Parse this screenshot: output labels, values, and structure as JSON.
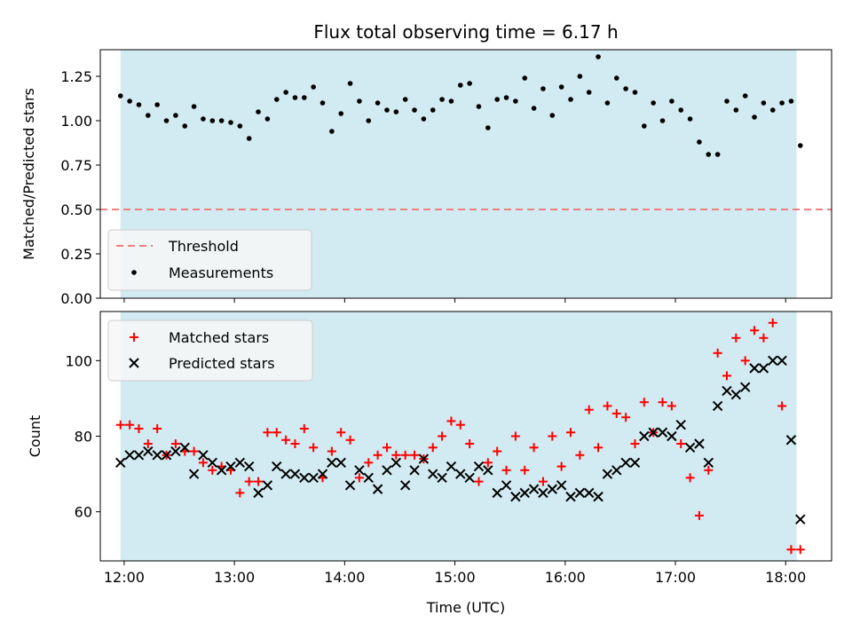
{
  "title": "Flux total observing time = 6.17 h",
  "colors": {
    "shade": "#add8e6",
    "threshold": "#f08080",
    "measurements": "#000000",
    "matched": "#ff0000",
    "predicted": "#000000",
    "legend_bg": "#f7f7f7"
  },
  "chart_data": [
    {
      "type": "scatter",
      "ylabel": "Matched/Predicted stars",
      "xlabel": "",
      "ylim": [
        0.0,
        1.4
      ],
      "xlim": [
        "11:47",
        "18:25"
      ],
      "yticks": [
        "0.00",
        "0.25",
        "0.50",
        "0.75",
        "1.00",
        "1.25"
      ],
      "shaded_span": [
        "11:58",
        "18:06"
      ],
      "threshold": 0.5,
      "legend": {
        "placement": "lower-left",
        "entries": [
          "Threshold",
          "Measurements"
        ]
      },
      "series": [
        {
          "name": "Measurements",
          "x": [
            "11:58",
            "12:03",
            "12:08",
            "12:13",
            "12:18",
            "12:23",
            "12:28",
            "12:33",
            "12:38",
            "12:43",
            "12:48",
            "12:53",
            "12:58",
            "13:03",
            "13:08",
            "13:13",
            "13:18",
            "13:23",
            "13:28",
            "13:33",
            "13:38",
            "13:43",
            "13:48",
            "13:53",
            "13:58",
            "14:03",
            "14:08",
            "14:13",
            "14:18",
            "14:23",
            "14:28",
            "14:33",
            "14:38",
            "14:43",
            "14:48",
            "14:53",
            "14:58",
            "15:03",
            "15:08",
            "15:13",
            "15:18",
            "15:23",
            "15:28",
            "15:33",
            "15:38",
            "15:43",
            "15:48",
            "15:53",
            "15:58",
            "16:03",
            "16:08",
            "16:13",
            "16:18",
            "16:23",
            "16:28",
            "16:33",
            "16:38",
            "16:43",
            "16:48",
            "16:53",
            "16:58",
            "17:03",
            "17:08",
            "17:13",
            "17:18",
            "17:23",
            "17:28",
            "17:33",
            "17:38",
            "17:43",
            "17:48",
            "17:53",
            "17:58",
            "18:03",
            "18:08"
          ],
          "values": [
            1.14,
            1.11,
            1.09,
            1.03,
            1.09,
            1.0,
            1.03,
            0.97,
            1.08,
            1.01,
            1.0,
            1.0,
            0.99,
            0.97,
            0.9,
            1.05,
            1.01,
            1.12,
            1.16,
            1.13,
            1.13,
            1.19,
            1.1,
            0.94,
            1.04,
            1.21,
            1.11,
            1.0,
            1.1,
            1.06,
            1.05,
            1.12,
            1.06,
            1.01,
            1.06,
            1.12,
            1.11,
            1.2,
            1.21,
            1.08,
            0.96,
            1.12,
            1.13,
            1.11,
            1.24,
            1.07,
            1.18,
            1.03,
            1.19,
            1.12,
            1.25,
            1.16,
            1.36,
            1.1,
            1.24,
            1.18,
            1.16,
            0.97,
            1.1,
            1.0,
            1.11,
            1.06,
            1.01,
            0.88,
            0.81,
            0.81,
            1.11,
            1.06,
            1.14,
            1.02,
            1.1,
            1.06,
            1.1,
            1.11,
            0.86
          ]
        }
      ]
    },
    {
      "type": "scatter",
      "ylabel": "Count",
      "xlabel": "Time (UTC)",
      "ylim": [
        47,
        113
      ],
      "xlim": [
        "11:47",
        "18:25"
      ],
      "yticks": [
        "60",
        "80",
        "100"
      ],
      "xticks": [
        "12:00",
        "13:00",
        "14:00",
        "15:00",
        "16:00",
        "17:00",
        "18:00"
      ],
      "shaded_span": [
        "11:58",
        "18:06"
      ],
      "legend": {
        "placement": "top-left",
        "entries": [
          "Matched stars",
          "Predicted stars"
        ]
      },
      "series": [
        {
          "name": "Matched stars",
          "x": [
            "11:58",
            "12:03",
            "12:08",
            "12:13",
            "12:18",
            "12:23",
            "12:28",
            "12:33",
            "12:38",
            "12:43",
            "12:48",
            "12:53",
            "12:58",
            "13:03",
            "13:08",
            "13:13",
            "13:18",
            "13:23",
            "13:28",
            "13:33",
            "13:38",
            "13:43",
            "13:48",
            "13:53",
            "13:58",
            "14:03",
            "14:08",
            "14:13",
            "14:18",
            "14:23",
            "14:28",
            "14:33",
            "14:38",
            "14:43",
            "14:48",
            "14:53",
            "14:58",
            "15:03",
            "15:08",
            "15:13",
            "15:18",
            "15:23",
            "15:28",
            "15:33",
            "15:38",
            "15:43",
            "15:48",
            "15:53",
            "15:58",
            "16:03",
            "16:08",
            "16:13",
            "16:18",
            "16:23",
            "16:28",
            "16:33",
            "16:38",
            "16:43",
            "16:48",
            "16:53",
            "16:58",
            "17:03",
            "17:08",
            "17:13",
            "17:18",
            "17:23",
            "17:28",
            "17:33",
            "17:38",
            "17:43",
            "17:48",
            "17:53",
            "17:58",
            "18:03",
            "18:08"
          ],
          "values": [
            83,
            83,
            82,
            78,
            82,
            75,
            78,
            76,
            76,
            73,
            71,
            72,
            71,
            65,
            68,
            68,
            81,
            81,
            79,
            78,
            82,
            77,
            69,
            76,
            81,
            79,
            69,
            73,
            75,
            77,
            75,
            75,
            75,
            74,
            77,
            80,
            84,
            83,
            78,
            68,
            73,
            76,
            71,
            80,
            71,
            77,
            68,
            80,
            72,
            81,
            75,
            87,
            77,
            88,
            86,
            85,
            78,
            89,
            81,
            89,
            88,
            78,
            69,
            59,
            71,
            102,
            96,
            106,
            100,
            108,
            106,
            110,
            88,
            50,
            50
          ]
        },
        {
          "name": "Predicted stars",
          "x": [
            "11:58",
            "12:03",
            "12:08",
            "12:13",
            "12:18",
            "12:23",
            "12:28",
            "12:33",
            "12:38",
            "12:43",
            "12:48",
            "12:53",
            "12:58",
            "13:03",
            "13:08",
            "13:13",
            "13:18",
            "13:23",
            "13:28",
            "13:33",
            "13:38",
            "13:43",
            "13:48",
            "13:53",
            "13:58",
            "14:03",
            "14:08",
            "14:13",
            "14:18",
            "14:23",
            "14:28",
            "14:33",
            "14:38",
            "14:43",
            "14:48",
            "14:53",
            "14:58",
            "15:03",
            "15:08",
            "15:13",
            "15:18",
            "15:23",
            "15:28",
            "15:33",
            "15:38",
            "15:43",
            "15:48",
            "15:53",
            "15:58",
            "16:03",
            "16:08",
            "16:13",
            "16:18",
            "16:23",
            "16:28",
            "16:33",
            "16:38",
            "16:43",
            "16:48",
            "16:53",
            "16:58",
            "17:03",
            "17:08",
            "17:13",
            "17:18",
            "17:23",
            "17:28",
            "17:33",
            "17:38",
            "17:43",
            "17:48",
            "17:53",
            "17:58",
            "18:03",
            "18:08"
          ],
          "values": [
            73,
            75,
            75,
            76,
            75,
            75,
            76,
            77,
            70,
            75,
            73,
            71,
            72,
            73,
            72,
            65,
            67,
            72,
            70,
            70,
            69,
            69,
            70,
            73,
            73,
            67,
            71,
            69,
            66,
            71,
            73,
            67,
            71,
            74,
            70,
            69,
            72,
            70,
            69,
            72,
            71,
            65,
            67,
            64,
            65,
            66,
            65,
            66,
            67,
            64,
            65,
            65,
            64,
            70,
            71,
            73,
            73,
            80,
            81,
            81,
            80,
            83,
            77,
            78,
            73,
            88,
            92,
            91,
            93,
            98,
            98,
            100,
            100,
            79,
            58
          ]
        }
      ]
    }
  ]
}
